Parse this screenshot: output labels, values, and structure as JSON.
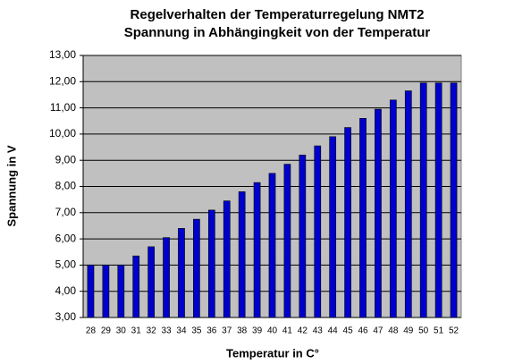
{
  "chart_data": {
    "type": "bar",
    "title": "Regelverhalten der Temperaturregelung NMT2",
    "subtitle": "Spannung in Abhängingkeit von der Temperatur",
    "x_label": "Temperatur in C°",
    "y_label": "Spannung in V",
    "categories": [
      "28",
      "29",
      "30",
      "31",
      "32",
      "33",
      "34",
      "35",
      "36",
      "37",
      "38",
      "39",
      "40",
      "41",
      "42",
      "43",
      "44",
      "45",
      "46",
      "47",
      "48",
      "49",
      "50",
      "51",
      "52"
    ],
    "values": [
      5.0,
      5.0,
      5.0,
      5.35,
      5.7,
      6.05,
      6.4,
      6.75,
      7.1,
      7.45,
      7.8,
      8.15,
      8.5,
      8.85,
      9.2,
      9.55,
      9.9,
      10.25,
      10.6,
      10.95,
      11.3,
      11.65,
      11.95,
      11.95,
      11.95
    ],
    "color": "#0000cc",
    "ylim": [
      3,
      13
    ],
    "yticks": [
      {
        "value": 3,
        "label": "3,00"
      },
      {
        "value": 4,
        "label": "4,00"
      },
      {
        "value": 5,
        "label": "5,00"
      },
      {
        "value": 6,
        "label": "6,00"
      },
      {
        "value": 7,
        "label": "7,00"
      },
      {
        "value": 8,
        "label": "8,00"
      },
      {
        "value": 9,
        "label": "9,00"
      },
      {
        "value": 10,
        "label": "10,00"
      },
      {
        "value": 11,
        "label": "11,00"
      },
      {
        "value": 12,
        "label": "12,00"
      },
      {
        "value": 13,
        "label": "13,00"
      }
    ],
    "grid": true
  }
}
